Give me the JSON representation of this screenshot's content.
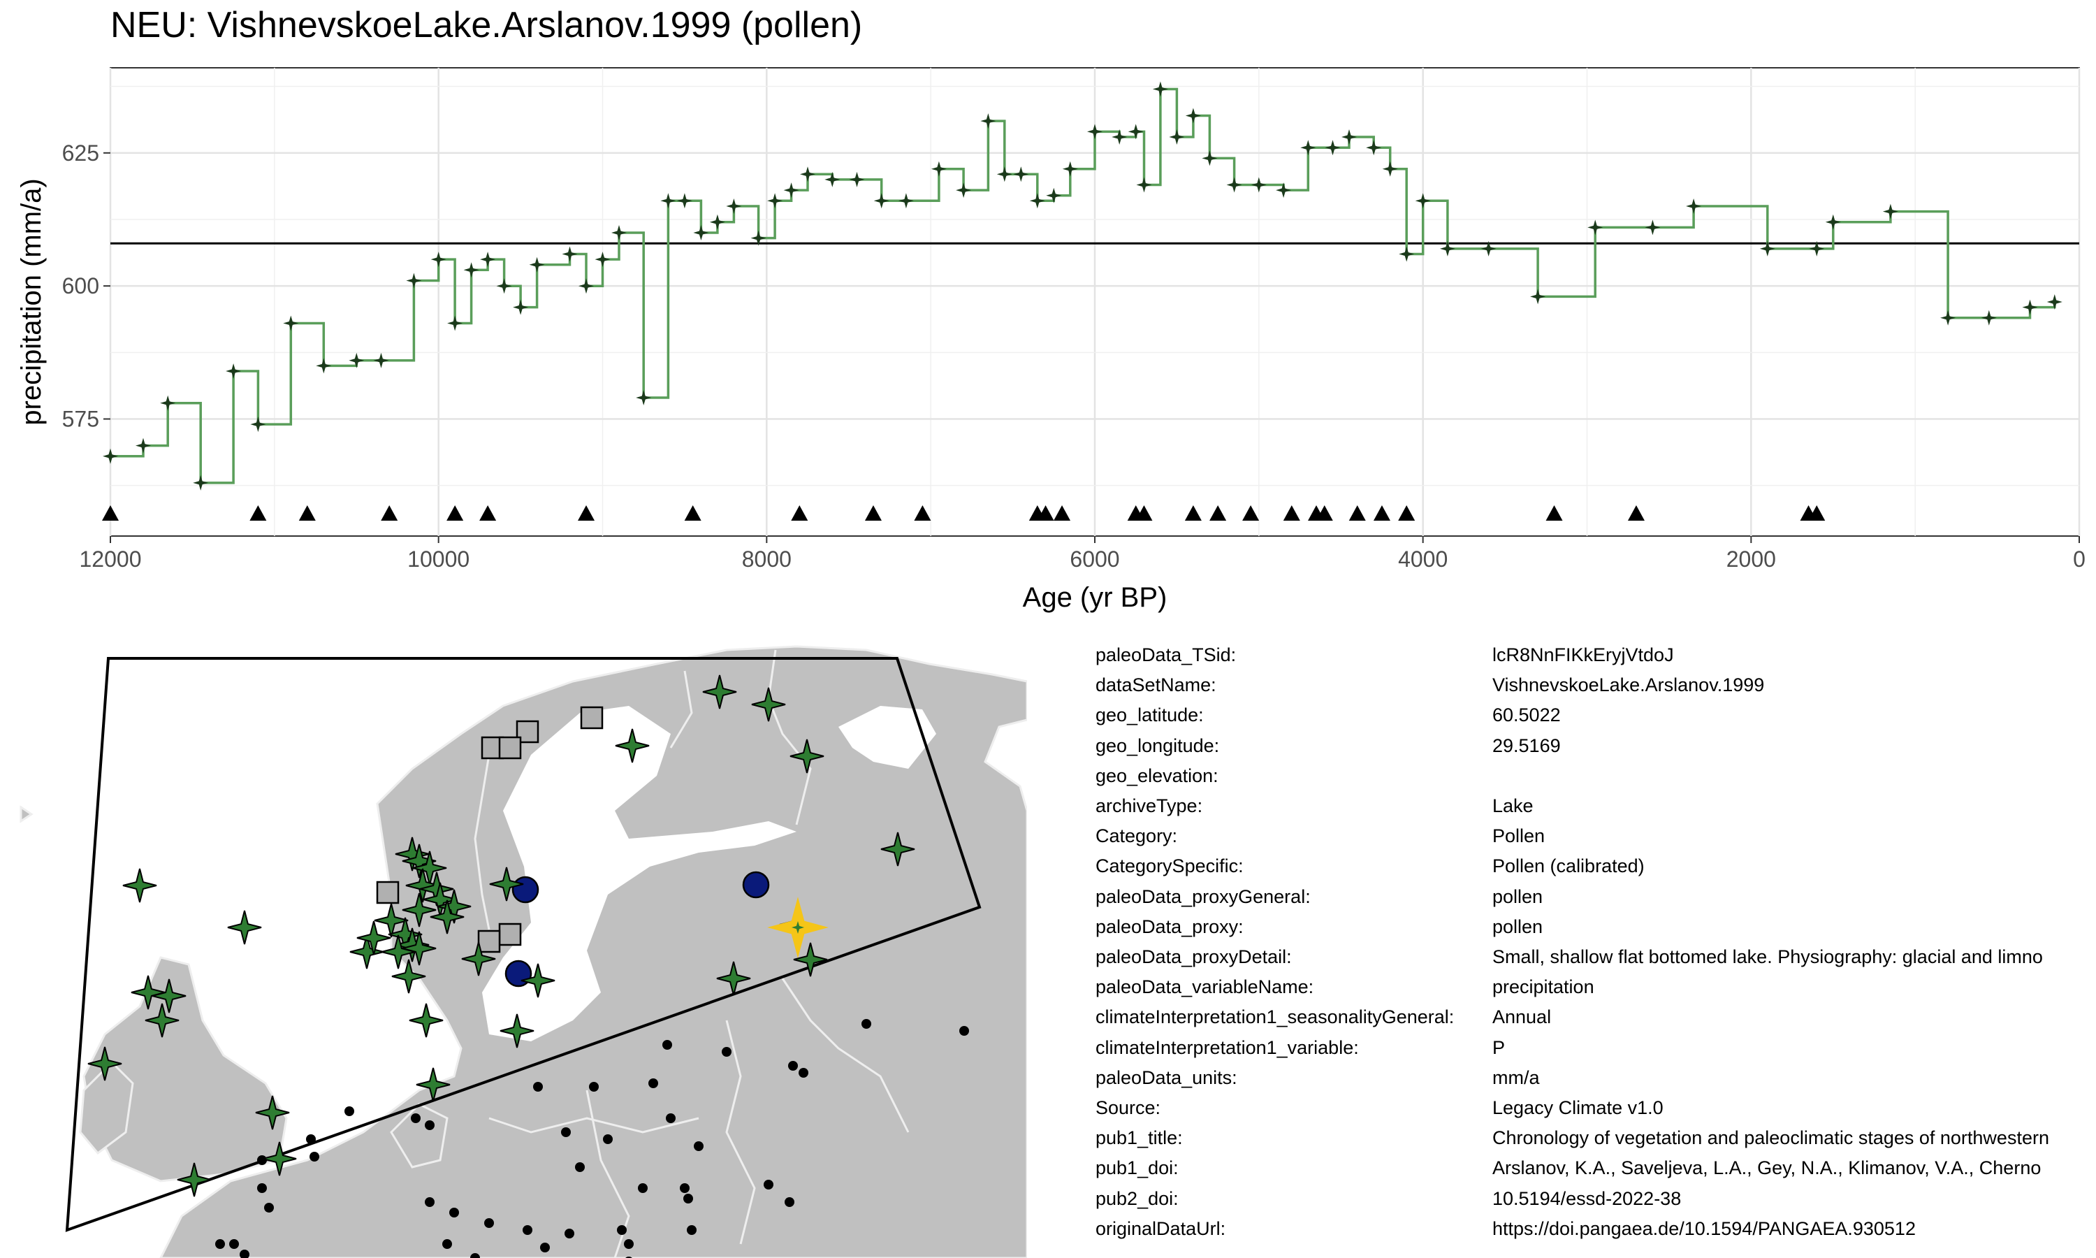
{
  "chart_data": {
    "type": "line",
    "title": "NEU: VishnevskoeLake.Arslanov.1999 (pollen)",
    "xlabel": "Age (yr BP)",
    "ylabel": "precipitation (mm/a)",
    "xlim": [
      12000,
      0
    ],
    "ylim": [
      553,
      641
    ],
    "x_ticks": [
      12000,
      10000,
      8000,
      6000,
      4000,
      2000,
      0
    ],
    "x_tick_labels": [
      "12000",
      "10000",
      "8000",
      "6000",
      "4000",
      "2000",
      "0"
    ],
    "y_ticks": [
      575,
      600,
      625
    ],
    "y_tick_labels": [
      "575",
      "600",
      "625"
    ],
    "reference_line": 608,
    "grid": true,
    "step": true,
    "line_color": "#5a9e5a",
    "marker_color": "#1b3a1b",
    "series": [
      {
        "x": [
          12000,
          11800,
          11650,
          11450,
          11250,
          11100,
          10900,
          10700,
          10500,
          10350,
          10150,
          10000,
          9900,
          9800,
          9700,
          9600,
          9500,
          9400,
          9200,
          9100,
          9000,
          8900,
          8750,
          8600,
          8500,
          8400,
          8300,
          8200,
          8050,
          7950,
          7850,
          7750,
          7600,
          7450,
          7300,
          7150,
          6950,
          6800,
          6650,
          6550,
          6450,
          6350,
          6250,
          6150,
          6000,
          5850,
          5750,
          5700,
          5600,
          5500,
          5400,
          5300,
          5150,
          5000,
          4850,
          4700,
          4550,
          4450,
          4300,
          4200,
          4100,
          4000,
          3850,
          3600,
          3300,
          2950,
          2600,
          2350,
          1900,
          1600,
          1500,
          1150,
          800,
          550,
          300,
          150
        ],
        "y": [
          568,
          570,
          578,
          563,
          584,
          574,
          593,
          585,
          586,
          586,
          601,
          605,
          593,
          603,
          605,
          600,
          596,
          604,
          606,
          600,
          605,
          610,
          579,
          616,
          616,
          610,
          612,
          615,
          609,
          616,
          618,
          621,
          620,
          620,
          616,
          616,
          622,
          618,
          631,
          621,
          621,
          616,
          617,
          622,
          629,
          628,
          629,
          619,
          637,
          628,
          632,
          624,
          619,
          619,
          618,
          626,
          626,
          628,
          626,
          622,
          606,
          616,
          607,
          607,
          598,
          611,
          611,
          615,
          607,
          607,
          612,
          614,
          594,
          594,
          596,
          597
        ]
      }
    ],
    "age_control_points": [
      12000,
      11100,
      10800,
      10300,
      9900,
      9700,
      9100,
      8450,
      7800,
      7350,
      7050,
      6350,
      6300,
      6200,
      5750,
      5700,
      5400,
      5250,
      5050,
      4800,
      4650,
      4600,
      4400,
      4250,
      4100,
      3200,
      2700,
      1650,
      1600
    ]
  },
  "map": {
    "land_color": "#c0c0c0",
    "border_color": "#e8e8e8",
    "frame_color": "#000000",
    "highlight_color": "#f5c518",
    "green_star_color": "#2e7d32",
    "blue_circle_color": "#0a1a7a",
    "gray_square_color": "#b0b0b0"
  },
  "metadata": [
    {
      "key": "paleoData_TSid:",
      "value": "lcR8NnFIKkEryjVtdoJ"
    },
    {
      "key": "dataSetName:",
      "value": "VishnevskoeLake.Arslanov.1999"
    },
    {
      "key": "geo_latitude:",
      "value": "60.5022"
    },
    {
      "key": "geo_longitude:",
      "value": "29.5169"
    },
    {
      "key": "geo_elevation:",
      "value": ""
    },
    {
      "key": "archiveType:",
      "value": "Lake"
    },
    {
      "key": "Category:",
      "value": "Pollen"
    },
    {
      "key": "CategorySpecific:",
      "value": "Pollen (calibrated)"
    },
    {
      "key": "paleoData_proxyGeneral:",
      "value": "pollen"
    },
    {
      "key": "paleoData_proxy:",
      "value": "pollen"
    },
    {
      "key": "paleoData_proxyDetail:",
      "value": "Small, shallow flat bottomed lake. Physiography: glacial and limno"
    },
    {
      "key": "paleoData_variableName:",
      "value": "precipitation"
    },
    {
      "key": "climateInterpretation1_seasonalityGeneral:",
      "value": "Annual"
    },
    {
      "key": "climateInterpretation1_variable:",
      "value": "P"
    },
    {
      "key": "paleoData_units:",
      "value": "mm/a"
    },
    {
      "key": "Source:",
      "value": "Legacy Climate v1.0"
    },
    {
      "key": "pub1_title:",
      "value": "Chronology of vegetation and paleoclimatic stages of northwestern"
    },
    {
      "key": "pub1_doi:",
      "value": "Arslanov, K.A., Saveljeva, L.A., Gey, N.A., Klimanov, V.A., Cherno"
    },
    {
      "key": "pub2_doi:",
      "value": "10.5194/essd-2022-38"
    },
    {
      "key": "originalDataUrl:",
      "value": "https://doi.pangaea.de/10.1594/PANGAEA.930512"
    }
  ]
}
